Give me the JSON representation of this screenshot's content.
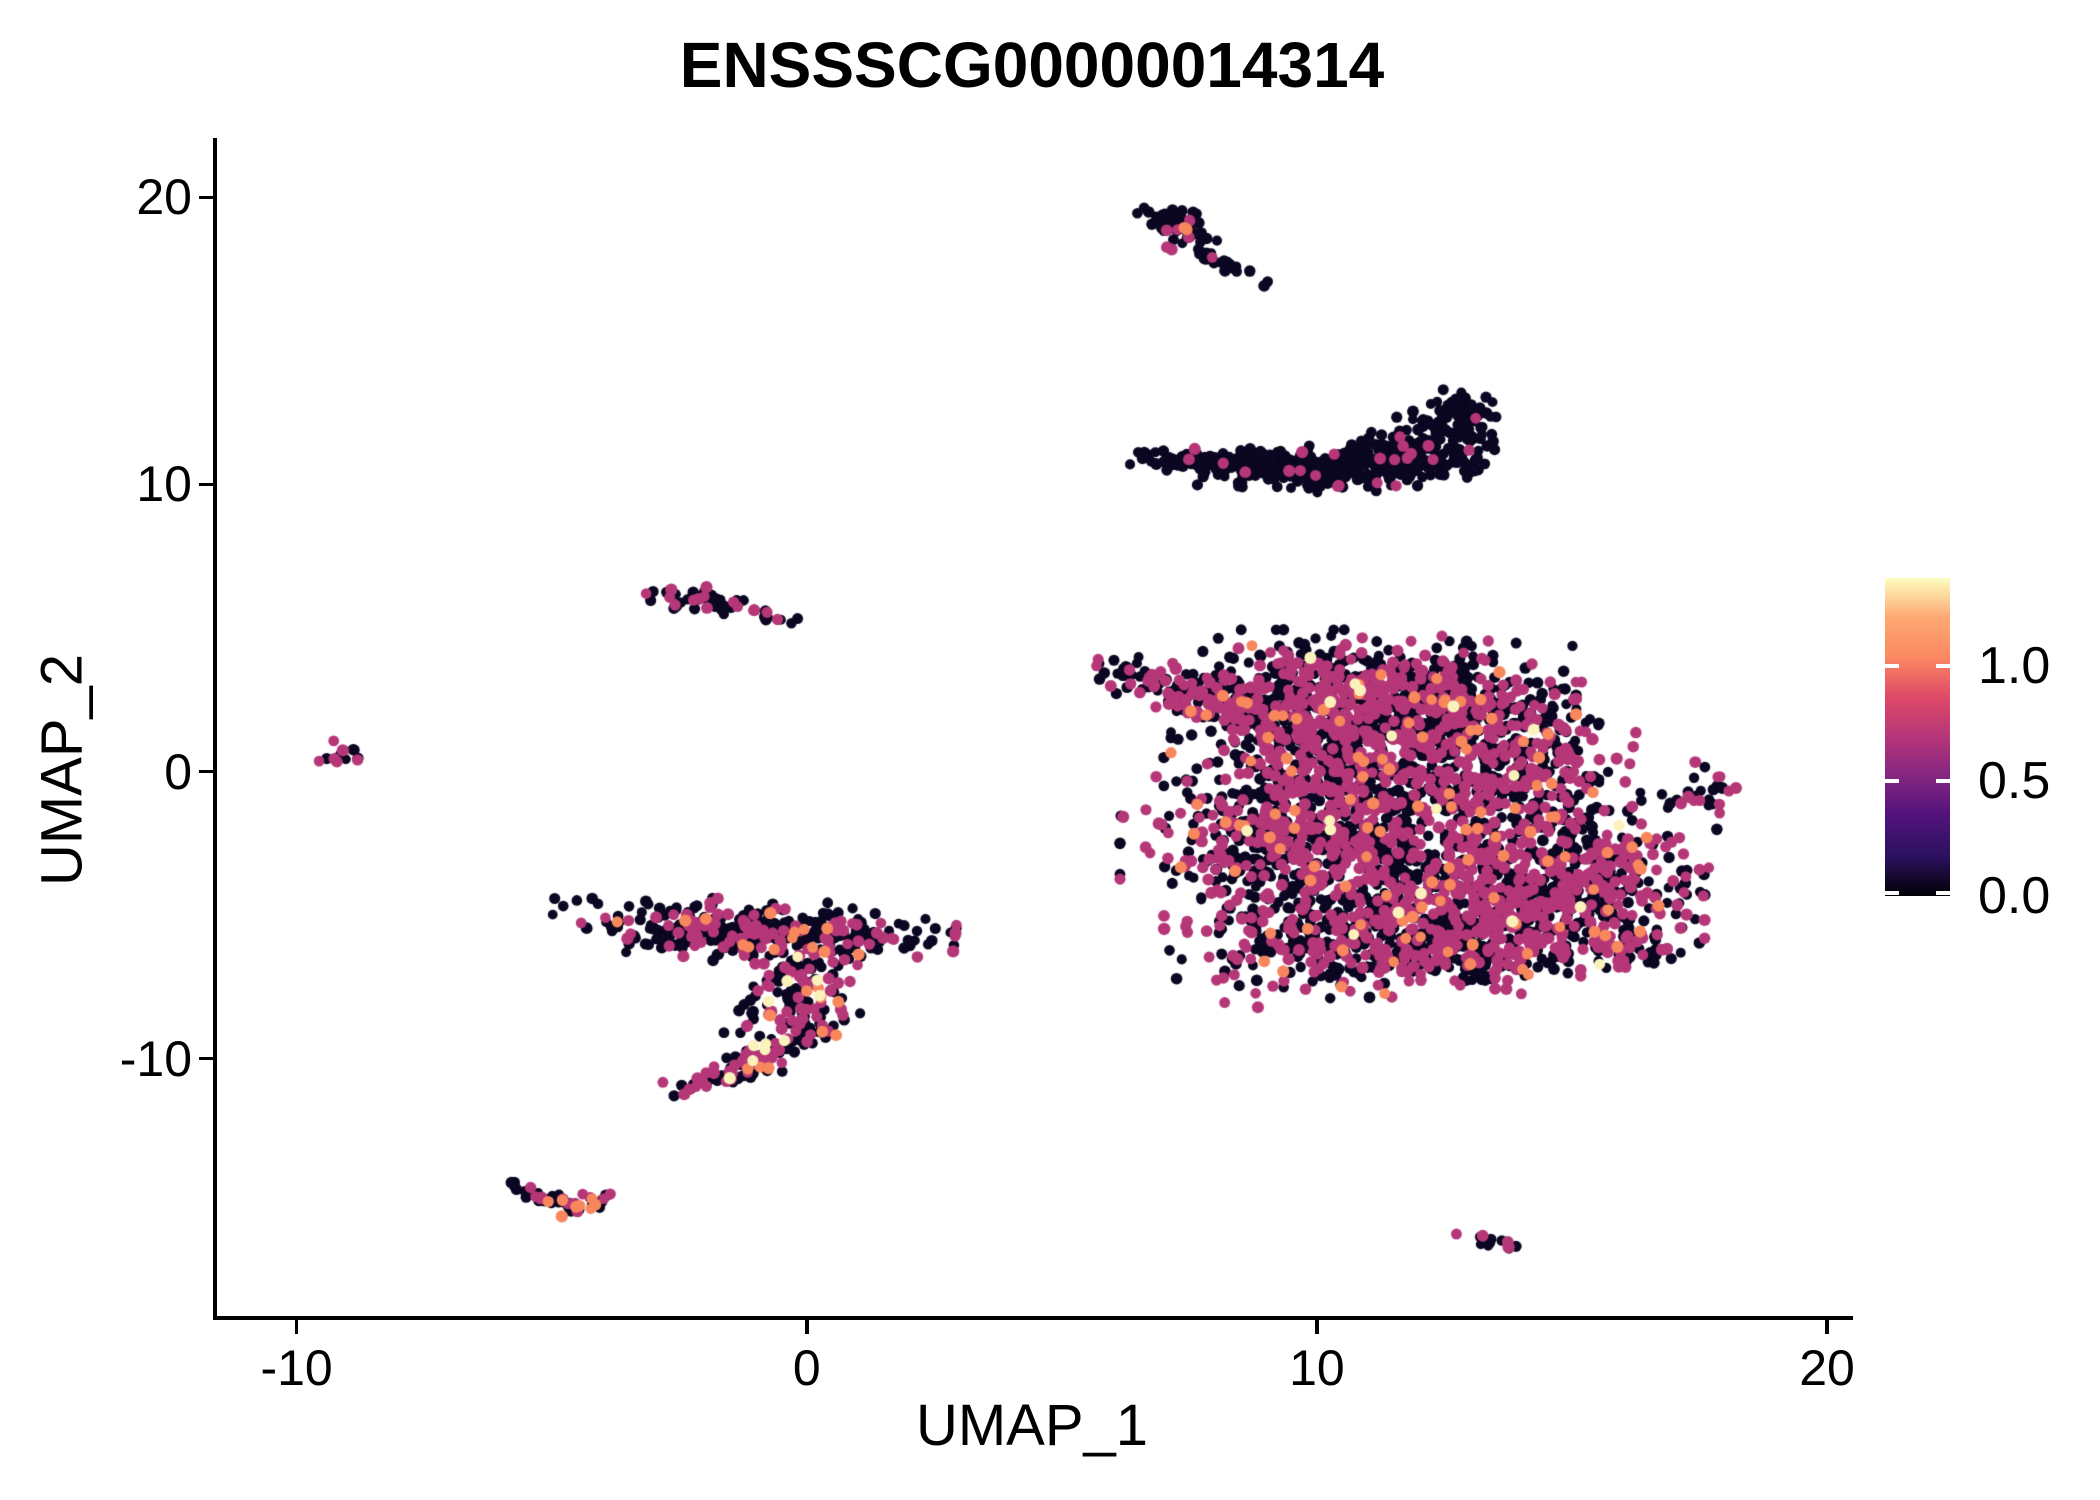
{
  "title": "ENSSSCG00000014314",
  "axes": {
    "x": {
      "title": "UMAP_1",
      "tick_labels": [
        "-10",
        "0",
        "10",
        "20"
      ],
      "tick_values": [
        -10,
        0,
        10,
        20
      ]
    },
    "y": {
      "title": "UMAP_2",
      "tick_labels": [
        "-10",
        "0",
        "10",
        "20"
      ],
      "tick_values": [
        -10,
        0,
        10,
        20
      ]
    }
  },
  "legend": {
    "labels": [
      "1.0",
      "0.5",
      "0.0"
    ],
    "values": [
      1.0,
      0.5,
      0.0
    ],
    "bar_min": 0,
    "bar_max": 1.38,
    "gradient_bottom_to_top": [
      "#000004",
      "#2C115F",
      "#51127C",
      "#832681",
      "#B63679",
      "#DE4968",
      "#FB8861",
      "#FEA873",
      "#FCFDBF"
    ]
  },
  "chart_data": {
    "type": "scatter",
    "title": "ENSSSCG00000014314",
    "xlabel": "UMAP_1",
    "ylabel": "UMAP_2",
    "xlim": [
      -11.6,
      20.45
    ],
    "ylim": [
      -19.0,
      22.0
    ],
    "x_ticks": [
      -10,
      0,
      10,
      20
    ],
    "y_ticks": [
      -10,
      0,
      10,
      20
    ],
    "grid": false,
    "colorscale": "magma",
    "color_value_range": [
      0,
      1.38
    ],
    "palette": {
      "zero": "#0B0621",
      "mid": "#B53778",
      "high": "#F8875D",
      "max": "#FBF1BB"
    },
    "clusters": [
      {
        "name": "top-comet",
        "mix": {
          "zero": 0.91,
          "mid": 0.06,
          "high": 0.03,
          "max": 0
        },
        "blobs": [
          {
            "cx": 7.35,
            "cy": 19.1,
            "sx": 0.38,
            "sy": 0.22,
            "rot": -35,
            "n": 55
          },
          {
            "cx": 8.1,
            "cy": 17.75,
            "sx": 0.5,
            "sy": 0.13,
            "rot": -42,
            "n": 28
          }
        ]
      },
      {
        "name": "banana",
        "mix": {
          "zero": 0.95,
          "mid": 0.045,
          "high": 0.005,
          "max": 0
        },
        "blobs": [
          {
            "cx": 8.4,
            "cy": 10.75,
            "sx": 0.9,
            "sy": 0.22,
            "rot": -4,
            "n": 130
          },
          {
            "cx": 10.4,
            "cy": 10.55,
            "sx": 1.15,
            "sy": 0.34,
            "rot": 2,
            "n": 240
          },
          {
            "cx": 12.2,
            "cy": 11.3,
            "sx": 0.75,
            "sy": 0.5,
            "rot": 42,
            "n": 170
          },
          {
            "cx": 12.85,
            "cy": 12.55,
            "sx": 0.28,
            "sy": 0.42,
            "rot": 25,
            "n": 45
          }
        ]
      },
      {
        "name": "small-pair-left",
        "mix": {
          "zero": 0.7,
          "mid": 0.3,
          "high": 0,
          "max": 0
        },
        "blobs": [
          {
            "cx": -2.05,
            "cy": 5.95,
            "sx": 0.48,
            "sy": 0.2,
            "rot": -12,
            "n": 42
          },
          {
            "cx": -0.55,
            "cy": 5.35,
            "sx": 0.25,
            "sy": 0.09,
            "rot": -22,
            "n": 9
          }
        ]
      },
      {
        "name": "tiny-far-left",
        "mix": {
          "zero": 0.55,
          "mid": 0.45,
          "high": 0,
          "max": 0
        },
        "blobs": [
          {
            "cx": -9.0,
            "cy": 0.55,
            "sx": 0.25,
            "sy": 0.2,
            "rot": -30,
            "n": 13
          }
        ]
      },
      {
        "name": "main-right",
        "mix": {
          "zero": 0.565,
          "mid": 0.395,
          "high": 0.035,
          "max": 0.005
        },
        "blobs": [
          {
            "cx": 6.2,
            "cy": 3.5,
            "sx": 0.3,
            "sy": 0.2,
            "rot": -30,
            "n": 12
          },
          {
            "cx": 7.7,
            "cy": 2.6,
            "sx": 0.85,
            "sy": 0.35,
            "rot": -25,
            "n": 130
          },
          {
            "cx": 9.9,
            "cy": 2.3,
            "sx": 1.15,
            "sy": 1.1,
            "rot": 0,
            "n": 500
          },
          {
            "cx": 12.2,
            "cy": 2.2,
            "sx": 1.2,
            "sy": 1.05,
            "rot": 0,
            "n": 460
          },
          {
            "cx": 14.2,
            "cy": 0.0,
            "sx": 0.9,
            "sy": 1.3,
            "rot": 0,
            "n": 300
          },
          {
            "cx": 10.6,
            "cy": -0.7,
            "sx": 1.5,
            "sy": 1.2,
            "rot": 0,
            "n": 520
          },
          {
            "cx": 8.9,
            "cy": -2.7,
            "sx": 1.15,
            "sy": 1.05,
            "rot": 0,
            "n": 260
          },
          {
            "cx": 12.1,
            "cy": -3.7,
            "sx": 1.7,
            "sy": 1.3,
            "rot": 0,
            "n": 600
          },
          {
            "cx": 15.8,
            "cy": -3.4,
            "sx": 0.85,
            "sy": 1.0,
            "rot": 0,
            "n": 130
          },
          {
            "cx": 14.6,
            "cy": -4.6,
            "sx": 1.25,
            "sy": 1.05,
            "rot": 0,
            "n": 300
          },
          {
            "cx": 10.7,
            "cy": -5.9,
            "sx": 1.5,
            "sy": 0.85,
            "rot": 8,
            "n": 300
          },
          {
            "cx": 13.0,
            "cy": -6.3,
            "sx": 1.05,
            "sy": 0.6,
            "rot": 0,
            "n": 170
          },
          {
            "cx": 16.1,
            "cy": -6.1,
            "sx": 0.55,
            "sy": 0.4,
            "rot": -25,
            "n": 60
          }
        ]
      },
      {
        "name": "small-seven-right",
        "mix": {
          "zero": 0.68,
          "mid": 0.32,
          "high": 0,
          "max": 0
        },
        "blobs": [
          {
            "cx": 17.45,
            "cy": -0.75,
            "sx": 0.38,
            "sy": 0.45,
            "rot": 0,
            "n": 26
          }
        ]
      },
      {
        "name": "s-band",
        "mix": {
          "zero": 0.72,
          "mid": 0.26,
          "high": 0.02,
          "max": 0
        },
        "blobs": [
          {
            "cx": -1.05,
            "cy": -5.55,
            "sx": 1.65,
            "sy": 0.45,
            "rot": -4,
            "n": 380
          }
        ]
      },
      {
        "name": "s-bulge",
        "mix": {
          "zero": 0.5,
          "mid": 0.37,
          "high": 0.09,
          "max": 0.04
        },
        "blobs": [
          {
            "cx": -0.15,
            "cy": -7.7,
            "sx": 0.55,
            "sy": 0.85,
            "rot": -12,
            "n": 130
          }
        ]
      },
      {
        "name": "s-tail",
        "mix": {
          "zero": 0.55,
          "mid": 0.33,
          "high": 0.07,
          "max": 0.05
        },
        "blobs": [
          {
            "cx": -0.55,
            "cy": -9.6,
            "sx": 0.75,
            "sy": 0.22,
            "rot": 38,
            "n": 70
          },
          {
            "cx": -1.6,
            "cy": -10.6,
            "sx": 0.5,
            "sy": 0.16,
            "rot": 25,
            "n": 45
          }
        ]
      },
      {
        "name": "v-check-bottom-left",
        "mix": {
          "zero": 0.58,
          "mid": 0.27,
          "high": 0.15,
          "max": 0
        },
        "blobs": [
          {
            "cx": -5.05,
            "cy": -14.85,
            "sx": 0.38,
            "sy": 0.13,
            "rot": -35,
            "n": 28
          },
          {
            "cx": -4.4,
            "cy": -15.05,
            "sx": 0.32,
            "sy": 0.13,
            "rot": 33,
            "n": 24
          }
        ]
      },
      {
        "name": "tiny-bottom-right",
        "mix": {
          "zero": 0.5,
          "mid": 0.5,
          "high": 0,
          "max": 0
        },
        "blobs": [
          {
            "cx": 13.45,
            "cy": -16.3,
            "sx": 0.3,
            "sy": 0.12,
            "rot": -28,
            "n": 13
          }
        ]
      }
    ]
  }
}
